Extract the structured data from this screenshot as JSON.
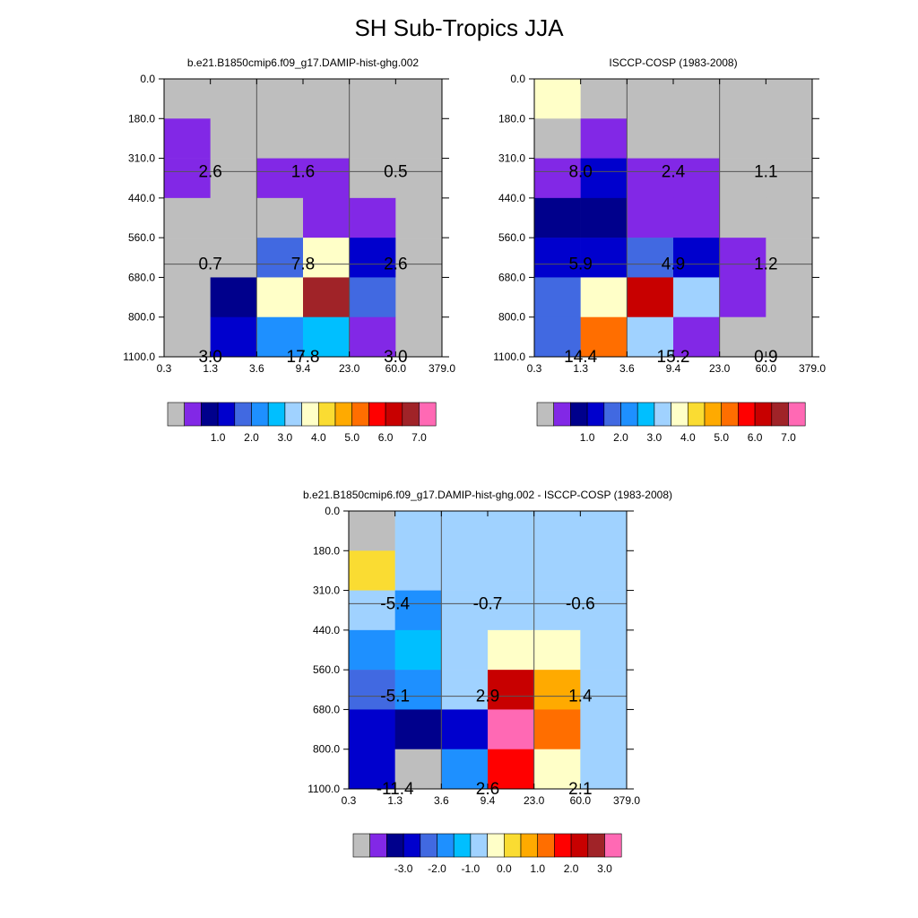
{
  "title": "SH Sub-Tropics JJA",
  "colors": {
    "scale_a": [
      "#bebebe",
      "#8228e6",
      "#00008c",
      "#0000cd",
      "#4169e1",
      "#1e90ff",
      "#00bfff",
      "#a0d2ff",
      "#ffffc8",
      "#fadc32",
      "#ffaa00",
      "#ff6e00",
      "#ff0000",
      "#c80000",
      "#a02328",
      "#ff69b4"
    ],
    "scale_b": [
      "#bebebe",
      "#8228e6",
      "#00008c",
      "#0000cd",
      "#4169e1",
      "#1e90ff",
      "#00bfff",
      "#a0d2ff",
      "#ffffc8",
      "#fadc32",
      "#ffaa00",
      "#ff6e00",
      "#ff0000",
      "#c80000",
      "#a02328",
      "#ff69b4"
    ]
  },
  "chart_data": [
    {
      "type": "heatmap",
      "id": "model",
      "title": "b.e21.B1850cmip6.f09_g17.DAMIP-hist-ghg.002",
      "xlabel": "",
      "ylabel": "",
      "x_ticks": [
        "0.3",
        "1.3",
        "3.6",
        "9.4",
        "23.0",
        "60.0",
        "379.0"
      ],
      "y_ticks": [
        "0.0",
        "180.0",
        "310.0",
        "440.0",
        "560.0",
        "680.0",
        "800.0",
        "1100.0"
      ],
      "cells": [
        [
          0,
          0,
          0,
          0,
          0,
          0
        ],
        [
          1,
          0,
          0,
          0,
          0,
          0
        ],
        [
          1,
          0,
          1,
          1,
          0,
          0
        ],
        [
          0,
          0,
          0,
          1,
          1,
          0
        ],
        [
          0,
          0,
          4,
          8,
          3,
          0
        ],
        [
          0,
          2,
          8,
          14,
          4,
          0
        ],
        [
          0,
          3,
          5,
          6,
          1,
          0
        ]
      ],
      "labels": [
        {
          "text": "2.6",
          "col": 0,
          "row": 1
        },
        {
          "text": "1.6",
          "col": 1,
          "row": 1
        },
        {
          "text": "0.5",
          "col": 2,
          "row": 1
        },
        {
          "text": "0.7",
          "col": 0,
          "row": 2
        },
        {
          "text": "7.8",
          "col": 1,
          "row": 2
        },
        {
          "text": "2.6",
          "col": 2,
          "row": 2
        },
        {
          "text": "3.0",
          "col": 0,
          "row": 3
        },
        {
          "text": "17.8",
          "col": 1,
          "row": 3
        },
        {
          "text": "3.0",
          "col": 2,
          "row": 3
        }
      ],
      "colorbar": {
        "labels": [
          "1.0",
          "2.0",
          "3.0",
          "4.0",
          "5.0",
          "6.0",
          "7.0"
        ]
      }
    },
    {
      "type": "heatmap",
      "id": "obs",
      "title": "ISCCP-COSP (1983-2008)",
      "xlabel": "",
      "ylabel": "",
      "x_ticks": [
        "0.3",
        "1.3",
        "3.6",
        "9.4",
        "23.0",
        "60.0",
        "379.0"
      ],
      "y_ticks": [
        "0.0",
        "180.0",
        "310.0",
        "440.0",
        "560.0",
        "680.0",
        "800.0",
        "1100.0"
      ],
      "cells": [
        [
          8,
          0,
          0,
          0,
          0,
          0
        ],
        [
          0,
          1,
          0,
          0,
          0,
          0
        ],
        [
          1,
          3,
          1,
          1,
          0,
          0
        ],
        [
          2,
          2,
          1,
          1,
          0,
          0
        ],
        [
          3,
          3,
          4,
          3,
          1,
          0
        ],
        [
          4,
          8,
          13,
          7,
          1,
          0
        ],
        [
          4,
          11,
          7,
          1,
          0,
          0
        ]
      ],
      "labels": [
        {
          "text": "8.0",
          "col": 0,
          "row": 1
        },
        {
          "text": "2.4",
          "col": 1,
          "row": 1
        },
        {
          "text": "1.1",
          "col": 2,
          "row": 1
        },
        {
          "text": "5.9",
          "col": 0,
          "row": 2
        },
        {
          "text": "4.9",
          "col": 1,
          "row": 2
        },
        {
          "text": "1.2",
          "col": 2,
          "row": 2
        },
        {
          "text": "14.4",
          "col": 0,
          "row": 3
        },
        {
          "text": "15.2",
          "col": 1,
          "row": 3
        },
        {
          "text": "0.9",
          "col": 2,
          "row": 3
        }
      ],
      "colorbar": {
        "labels": [
          "1.0",
          "2.0",
          "3.0",
          "4.0",
          "5.0",
          "6.0",
          "7.0"
        ]
      }
    },
    {
      "type": "heatmap",
      "id": "diff",
      "title": "b.e21.B1850cmip6.f09_g17.DAMIP-hist-ghg.002 - ISCCP-COSP (1983-2008)",
      "xlabel": "",
      "ylabel": "",
      "x_ticks": [
        "0.3",
        "1.3",
        "3.6",
        "9.4",
        "23.0",
        "60.0",
        "379.0"
      ],
      "y_ticks": [
        "0.0",
        "180.0",
        "310.0",
        "440.0",
        "560.0",
        "680.0",
        "800.0",
        "1100.0"
      ],
      "cells": [
        [
          0,
          7,
          7,
          7,
          7,
          7
        ],
        [
          9,
          7,
          7,
          7,
          7,
          7
        ],
        [
          7,
          5,
          7,
          7,
          7,
          7
        ],
        [
          5,
          6,
          7,
          8,
          8,
          7
        ],
        [
          4,
          5,
          7,
          13,
          10,
          7
        ],
        [
          3,
          2,
          3,
          15,
          11,
          7
        ],
        [
          3,
          0,
          5,
          12,
          8,
          7
        ]
      ],
      "labels": [
        {
          "text": "-5.4",
          "col": 0,
          "row": 1
        },
        {
          "text": "-0.7",
          "col": 1,
          "row": 1
        },
        {
          "text": "-0.6",
          "col": 2,
          "row": 1
        },
        {
          "text": "-5.1",
          "col": 0,
          "row": 2
        },
        {
          "text": "2.9",
          "col": 1,
          "row": 2
        },
        {
          "text": "1.4",
          "col": 2,
          "row": 2
        },
        {
          "text": "-11.4",
          "col": 0,
          "row": 3
        },
        {
          "text": "2.6",
          "col": 1,
          "row": 3
        },
        {
          "text": "2.1",
          "col": 2,
          "row": 3
        }
      ],
      "colorbar": {
        "labels": [
          "-3.0",
          "-2.0",
          "-1.0",
          "0.0",
          "1.0",
          "2.0",
          "3.0"
        ]
      }
    }
  ]
}
